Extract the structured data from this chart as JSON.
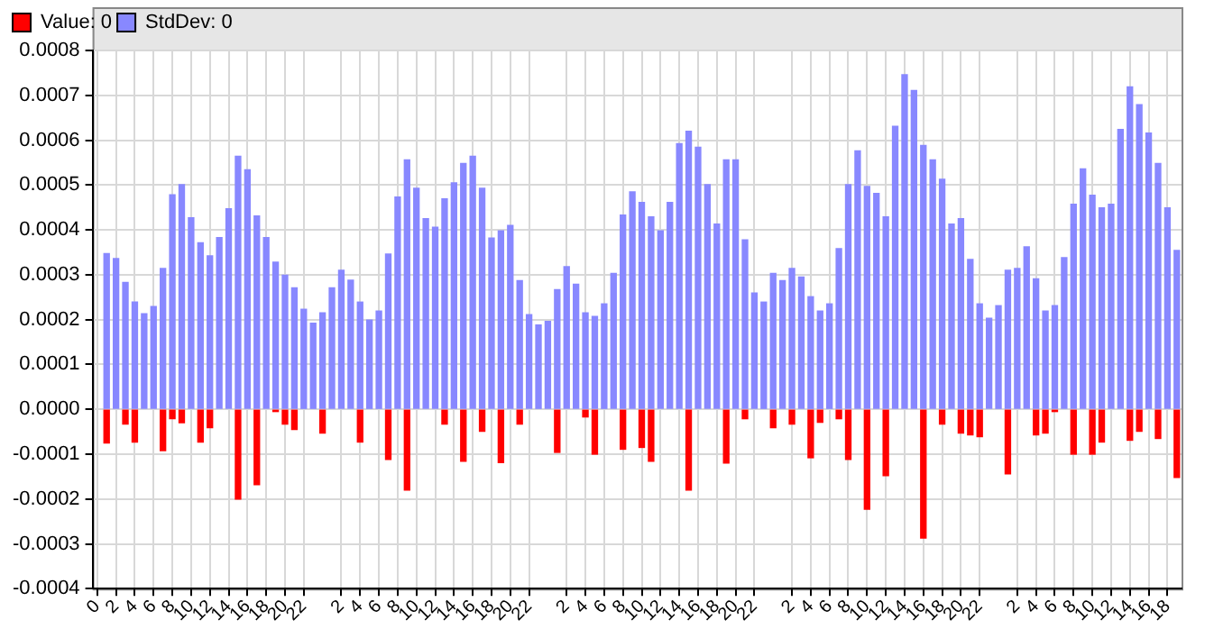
{
  "chart_data": {
    "type": "bar",
    "categories": [
      "0",
      null,
      "2",
      null,
      "4",
      null,
      "6",
      null,
      "8",
      null,
      "10",
      null,
      "12",
      null,
      "14",
      null,
      "16",
      null,
      "18",
      null,
      "20",
      null,
      "22",
      null,
      null,
      null,
      "2",
      null,
      "4",
      null,
      "6",
      null,
      "8",
      null,
      "10",
      null,
      "12",
      null,
      "14",
      null,
      "16",
      null,
      "18",
      null,
      "20",
      null,
      "22",
      null,
      null,
      null,
      "2",
      null,
      "4",
      null,
      "6",
      null,
      "8",
      null,
      "10",
      null,
      "12",
      null,
      "14",
      null,
      "16",
      null,
      "18",
      null,
      "20",
      null,
      "22",
      null,
      null,
      null,
      "2",
      null,
      "4",
      null,
      "6",
      null,
      "8",
      null,
      "10",
      null,
      "12",
      null,
      "14",
      null,
      "16",
      null,
      "18",
      null,
      "20",
      null,
      "22",
      null,
      null,
      null,
      "2",
      null,
      "4",
      null,
      "6",
      null,
      "8",
      null,
      "10",
      null,
      "12",
      null,
      "14",
      null,
      "16",
      null,
      "18",
      null
    ],
    "series": [
      {
        "name": "Value: 0",
        "color": "#ff0000",
        "values": [
          null,
          -7.5e-05,
          null,
          -3.3e-05,
          -7.3e-05,
          null,
          null,
          -9.2e-05,
          -2.1e-05,
          -3e-05,
          null,
          -7.3e-05,
          -4.1e-05,
          null,
          null,
          -0.0002,
          null,
          -0.000168,
          null,
          -5e-06,
          -3.3e-05,
          -4.5e-05,
          null,
          null,
          -5.3e-05,
          null,
          null,
          null,
          -7.3e-05,
          null,
          null,
          -0.000112,
          null,
          -0.00018,
          null,
          null,
          null,
          -3.3e-05,
          null,
          -0.000116,
          null,
          -4.9e-05,
          null,
          -0.000119,
          null,
          -3.3e-05,
          null,
          null,
          null,
          -9.6e-05,
          null,
          null,
          -1.7e-05,
          -0.0001,
          null,
          null,
          -8.9e-05,
          null,
          -8.5e-05,
          -0.000116,
          null,
          null,
          null,
          -0.00018,
          null,
          null,
          null,
          -0.00012,
          null,
          -2.1e-05,
          null,
          null,
          -4.1e-05,
          null,
          -3.3e-05,
          null,
          -0.000108,
          -2.9e-05,
          null,
          -2.1e-05,
          -0.000112,
          null,
          -0.000223,
          null,
          -0.000148,
          null,
          null,
          null,
          -0.000287,
          null,
          -3.3e-05,
          null,
          -5.3e-05,
          -5.7e-05,
          -6.1e-05,
          null,
          null,
          -0.000144,
          null,
          null,
          -5.7e-05,
          -5.3e-05,
          -5e-06,
          null,
          -0.0001,
          null,
          -0.0001,
          -7.3e-05,
          null,
          null,
          -6.9e-05,
          -4.9e-05,
          null,
          -6.5e-05,
          null,
          -0.000152
        ]
      },
      {
        "name": "StdDev: 0",
        "color": "#8888ff",
        "values": [
          null,
          0.000347,
          0.000336,
          0.000283,
          0.000239,
          0.000213,
          0.000229,
          0.000314,
          0.000478,
          0.000501,
          0.000427,
          0.000371,
          0.000342,
          0.000383,
          0.000447,
          0.000564,
          0.000534,
          0.000431,
          0.000383,
          0.000328,
          0.000299,
          0.000271,
          0.000223,
          0.000192,
          0.000215,
          0.000271,
          0.00031,
          0.000288,
          0.000239,
          0.000199,
          0.000219,
          0.000346,
          0.000473,
          0.000556,
          0.000493,
          0.000425,
          0.000406,
          0.000469,
          0.000505,
          0.000548,
          0.000564,
          0.000493,
          0.000382,
          0.000398,
          0.00041,
          0.000287,
          0.000211,
          0.000188,
          0.000196,
          0.000267,
          0.000318,
          0.000279,
          0.000215,
          0.000207,
          0.000235,
          0.000303,
          0.000433,
          0.000485,
          0.000461,
          0.000429,
          0.000398,
          0.000461,
          0.000592,
          0.00062,
          0.000584,
          0.000501,
          0.000413,
          0.000556,
          0.000556,
          0.000378,
          0.000259,
          0.000239,
          0.000303,
          0.000287,
          0.000314,
          0.000295,
          0.000251,
          0.000219,
          0.000235,
          0.000358,
          0.000501,
          0.000576,
          0.000497,
          0.000481,
          0.000429,
          0.000631,
          0.000746,
          0.000711,
          0.000588,
          0.000556,
          0.000513,
          0.000413,
          0.000425,
          0.000334,
          0.000235,
          0.000203,
          0.000231,
          0.00031,
          0.000314,
          0.000362,
          0.000291,
          0.000219,
          0.000231,
          0.000338,
          0.000457,
          0.000536,
          0.000477,
          0.000449,
          0.000457,
          0.000624,
          0.000719,
          0.000679,
          0.000616,
          0.000548,
          0.000449,
          0.000354
        ]
      }
    ],
    "ylim": [
      -0.0004,
      0.0008
    ],
    "yticks": [
      -0.0004,
      -0.0003,
      -0.0002,
      -0.0001,
      {
        "value": 0,
        "label": "0.0000"
      },
      0.0001,
      0.0002,
      0.0003,
      0.0004,
      0.0005,
      0.0006,
      0.0007,
      0.0008
    ],
    "grid": true,
    "legend": "top left"
  }
}
